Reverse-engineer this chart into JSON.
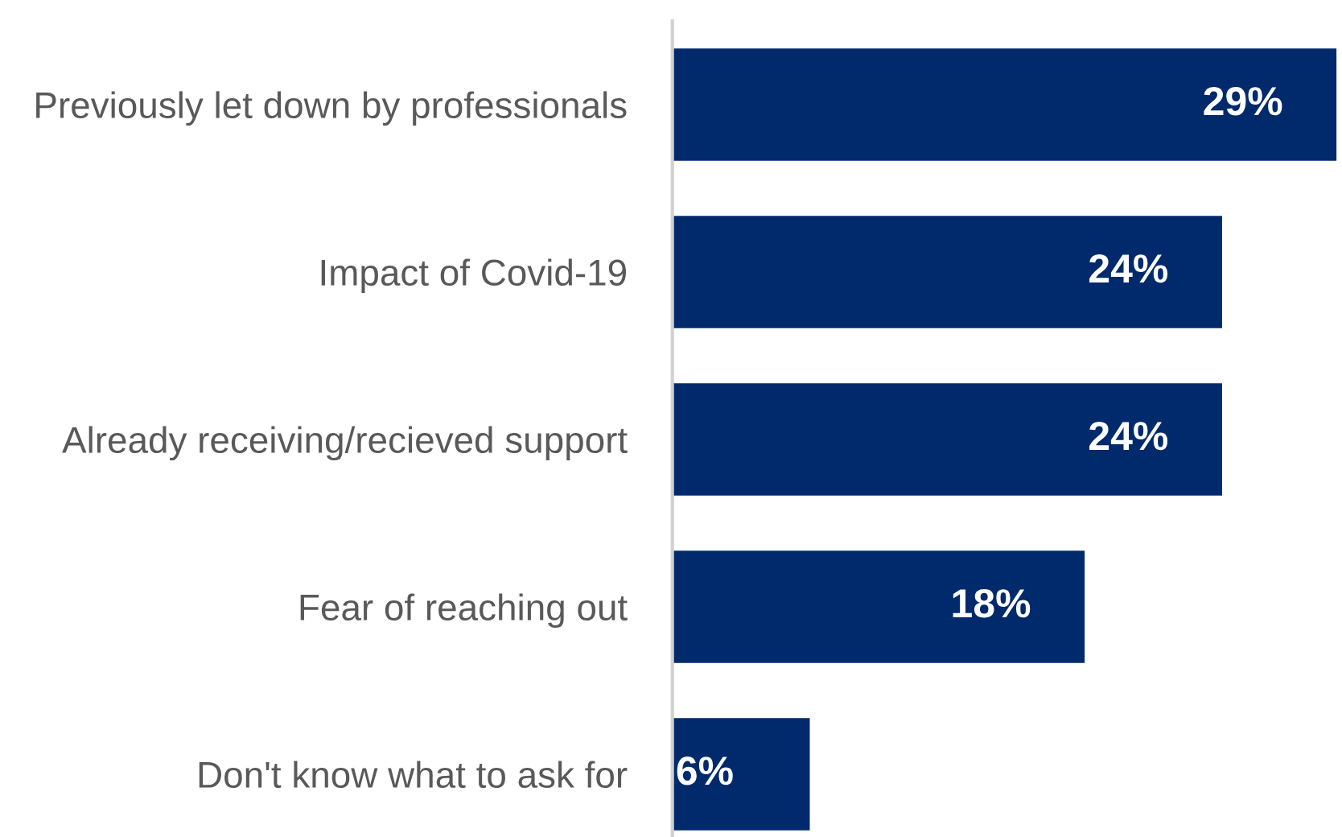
{
  "chart_data": {
    "type": "bar",
    "orientation": "horizontal",
    "categories": [
      "Previously let down by professionals",
      "Impact of Covid-19",
      "Already receiving/recieved support",
      "Fear of reaching out",
      "Don't know what to ask for"
    ],
    "values": [
      29,
      24,
      24,
      18,
      6
    ],
    "value_labels": [
      "29%",
      "24%",
      "24%",
      "18%",
      "6%"
    ],
    "color": "#002a6c",
    "xlim": [
      0,
      29
    ],
    "tick_labels": "y",
    "grid": false,
    "legend": false
  }
}
